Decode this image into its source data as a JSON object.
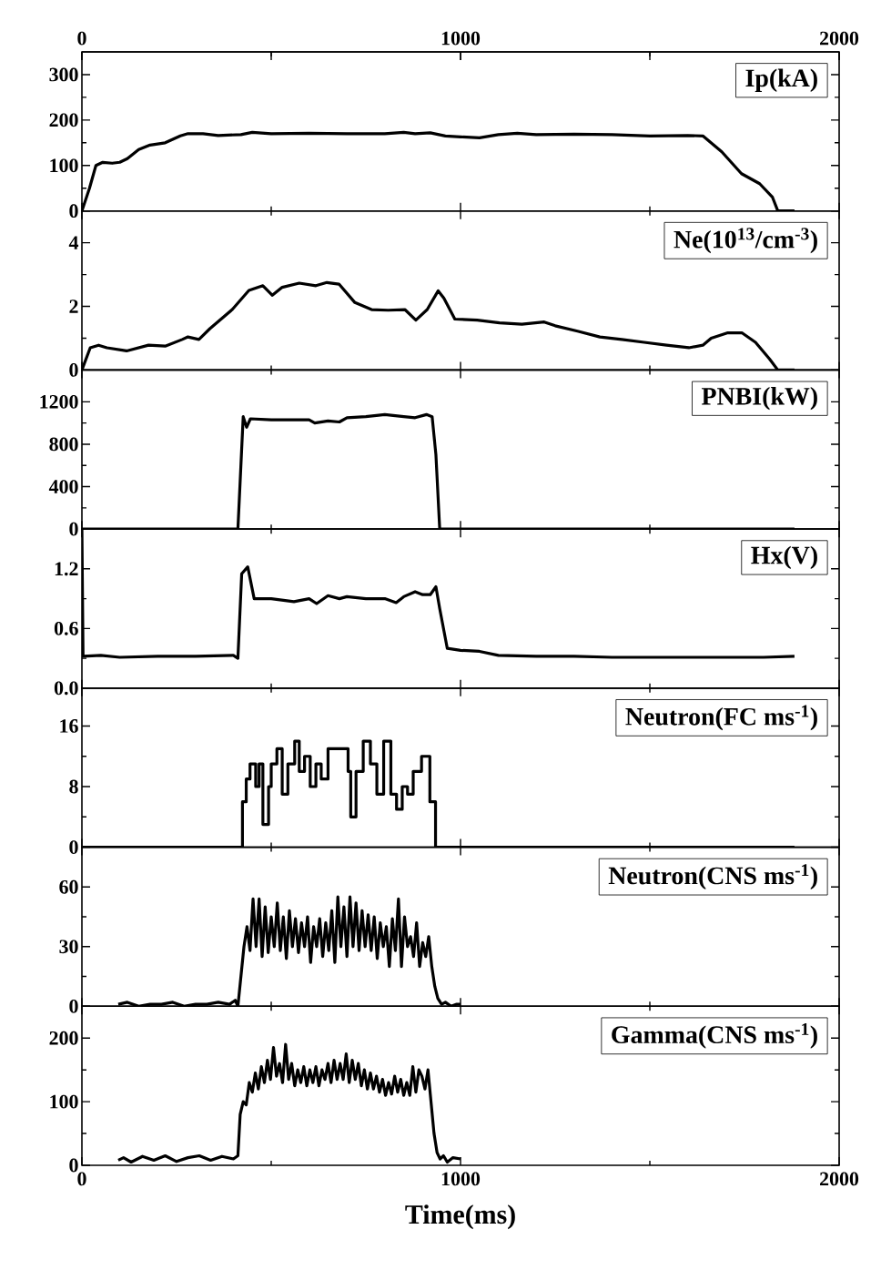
{
  "chart_data": [
    {
      "type": "line",
      "color": "#000000",
      "xlim": [
        0,
        2000
      ],
      "xticks": [
        0,
        1000,
        2000
      ],
      "x2lim": [
        0,
        2000
      ],
      "x2ticks": [
        0,
        1000,
        2000
      ],
      "tick_labels": "y",
      "ylim": [
        0,
        350
      ],
      "yticks": [
        0,
        100,
        200,
        300
      ],
      "annotations": [
        "Ip(kA)"
      ],
      "x": [
        0,
        20,
        37,
        55,
        80,
        100,
        120,
        150,
        180,
        220,
        260,
        280,
        320,
        360,
        420,
        450,
        500,
        600,
        700,
        800,
        850,
        880,
        920,
        960,
        1000,
        1050,
        1100,
        1150,
        1200,
        1300,
        1400,
        1500,
        1600,
        1640,
        1690,
        1742,
        1790,
        1824,
        1838,
        1882
      ],
      "values": [
        0,
        50,
        100,
        107,
        105,
        107,
        115,
        135,
        145,
        150,
        165,
        170,
        170,
        166,
        168,
        173,
        170,
        171,
        170,
        170,
        173,
        170,
        172,
        165,
        163,
        161,
        168,
        171,
        168,
        169,
        168,
        165,
        166,
        165,
        130,
        82,
        60,
        30,
        0,
        0
      ]
    },
    {
      "type": "line",
      "color": "#000000",
      "xlim": [
        0,
        2000
      ],
      "xticks": [
        0,
        1000,
        2000
      ],
      "tick_labels": "y",
      "ylim": [
        0,
        5
      ],
      "yticks": [
        0,
        2,
        4
      ],
      "annotations": [
        "Ne(10$^{13}$/cm$^{-3}$)"
      ],
      "x": [
        0,
        22,
        44,
        66,
        118,
        176,
        220,
        265,
        280,
        309,
        338,
        397,
        441,
        478,
        503,
        529,
        574,
        618,
        647,
        679,
        721,
        765,
        809,
        853,
        882,
        912,
        941,
        956,
        985,
        1044,
        1103,
        1162,
        1221,
        1250,
        1309,
        1368,
        1426,
        1485,
        1544,
        1603,
        1640,
        1662,
        1706,
        1743,
        1779,
        1816,
        1838,
        1882
      ],
      "values": [
        0,
        0.7,
        0.78,
        0.7,
        0.6,
        0.78,
        0.75,
        0.96,
        1.04,
        0.96,
        1.3,
        1.9,
        2.5,
        2.65,
        2.35,
        2.6,
        2.73,
        2.65,
        2.75,
        2.7,
        2.12,
        1.9,
        1.88,
        1.9,
        1.57,
        1.9,
        2.49,
        2.26,
        1.6,
        1.57,
        1.48,
        1.44,
        1.51,
        1.39,
        1.22,
        1.04,
        0.96,
        0.87,
        0.78,
        0.7,
        0.78,
        1.0,
        1.17,
        1.17,
        0.87,
        0.35,
        0,
        0
      ]
    },
    {
      "type": "line",
      "color": "#000000",
      "xlim": [
        0,
        2000
      ],
      "xticks": [
        0,
        1000,
        2000
      ],
      "tick_labels": "y",
      "ylim": [
        0,
        1500
      ],
      "yticks": [
        0,
        400,
        800,
        1200
      ],
      "annotations": [
        "PNBI(kW)"
      ],
      "x": [
        0,
        412,
        426,
        435,
        445,
        500,
        560,
        600,
        615,
        650,
        680,
        700,
        750,
        800,
        850,
        880,
        910,
        925,
        935,
        945,
        1882
      ],
      "values": [
        0,
        0,
        1060,
        960,
        1040,
        1030,
        1030,
        1030,
        1000,
        1020,
        1010,
        1050,
        1060,
        1080,
        1060,
        1050,
        1080,
        1060,
        700,
        0,
        0
      ]
    },
    {
      "type": "line",
      "color": "#000000",
      "xlim": [
        0,
        2000
      ],
      "xticks": [
        0,
        1000,
        2000
      ],
      "tick_labels": "y",
      "ylim": [
        0,
        1.6
      ],
      "yticks": [
        {
          "value": 0,
          "label": "0.0"
        },
        0.6,
        1.2
      ],
      "annotations": [
        "Hx(V)"
      ],
      "x": [
        0,
        3,
        50,
        100,
        200,
        300,
        400,
        412,
        422,
        438,
        455,
        500,
        560,
        600,
        620,
        650,
        680,
        700,
        750,
        800,
        830,
        850,
        880,
        900,
        920,
        935,
        945,
        965,
        1000,
        1050,
        1100,
        1200,
        1300,
        1400,
        1500,
        1600,
        1700,
        1800,
        1882
      ],
      "values": [
        1.6,
        0.32,
        0.33,
        0.31,
        0.32,
        0.32,
        0.33,
        0.3,
        1.15,
        1.22,
        0.9,
        0.9,
        0.87,
        0.9,
        0.85,
        0.93,
        0.9,
        0.92,
        0.9,
        0.9,
        0.86,
        0.92,
        0.97,
        0.94,
        0.94,
        1.02,
        0.8,
        0.4,
        0.38,
        0.37,
        0.33,
        0.32,
        0.32,
        0.31,
        0.31,
        0.31,
        0.31,
        0.31,
        0.32
      ]
    },
    {
      "type": "step",
      "color": "#000000",
      "xlim": [
        0,
        2000
      ],
      "xticks": [
        0,
        1000,
        2000
      ],
      "tick_labels": "y",
      "ylim": [
        0,
        21
      ],
      "yticks": [
        0,
        8,
        16
      ],
      "annotations": [
        "Neutron(FC ms$^{-1}$)"
      ],
      "x": [
        0,
        424,
        434,
        444,
        459,
        468,
        478,
        493,
        500,
        515,
        529,
        544,
        562,
        574,
        588,
        603,
        618,
        632,
        650,
        703,
        710,
        724,
        743,
        762,
        779,
        797,
        816,
        831,
        846,
        860,
        875,
        897,
        919,
        934,
        1882
      ],
      "values": [
        0,
        6,
        9,
        11,
        8,
        11,
        3,
        8,
        11,
        13,
        7,
        11,
        14,
        10,
        12,
        8,
        11,
        9,
        13,
        10,
        4,
        10,
        14,
        11,
        7,
        14,
        7,
        5,
        8,
        7,
        10,
        12,
        6,
        0,
        0
      ]
    },
    {
      "type": "line",
      "color": "#000000",
      "xlim": [
        0,
        2000
      ],
      "xticks": [
        0,
        1000,
        2000
      ],
      "tick_labels": "y",
      "ylim": [
        0,
        80
      ],
      "yticks": [
        0,
        30,
        60
      ],
      "annotations": [
        "Neutron(CNS ms$^{-1}$)"
      ],
      "x": [
        96,
        120,
        150,
        180,
        210,
        240,
        270,
        300,
        330,
        360,
        390,
        405,
        412,
        420,
        428,
        436,
        444,
        452,
        460,
        468,
        476,
        484,
        492,
        500,
        508,
        516,
        524,
        532,
        540,
        548,
        556,
        564,
        572,
        580,
        588,
        596,
        604,
        612,
        620,
        628,
        636,
        644,
        652,
        660,
        668,
        676,
        684,
        692,
        700,
        708,
        716,
        724,
        732,
        740,
        748,
        756,
        764,
        772,
        780,
        788,
        796,
        804,
        812,
        820,
        828,
        836,
        844,
        852,
        860,
        868,
        876,
        884,
        892,
        900,
        908,
        916,
        924,
        932,
        940,
        950,
        960,
        975,
        990,
        1000
      ],
      "values": [
        1,
        2,
        0,
        1,
        1,
        2,
        0,
        1,
        1,
        2,
        1,
        3,
        0,
        15,
        30,
        40,
        28,
        54,
        30,
        54,
        25,
        50,
        27,
        45,
        30,
        52,
        28,
        45,
        24,
        48,
        30,
        44,
        27,
        42,
        30,
        45,
        22,
        40,
        30,
        44,
        25,
        42,
        28,
        48,
        22,
        55,
        30,
        50,
        25,
        55,
        30,
        52,
        28,
        48,
        30,
        46,
        28,
        45,
        24,
        42,
        30,
        40,
        20,
        44,
        28,
        54,
        20,
        45,
        30,
        35,
        25,
        42,
        20,
        32,
        25,
        35,
        20,
        10,
        4,
        1,
        2,
        0,
        1,
        1
      ]
    },
    {
      "type": "line",
      "color": "#000000",
      "xlim": [
        0,
        2000
      ],
      "xticks": [
        0,
        1000,
        2000
      ],
      "ylim": [
        0,
        250
      ],
      "yticks": [
        0,
        100,
        200
      ],
      "xlabel": "Time(ms)",
      "annotations": [
        "Gamma(CNS ms$^{-1}$)"
      ],
      "x": [
        96,
        110,
        130,
        160,
        190,
        220,
        250,
        280,
        310,
        340,
        370,
        400,
        412,
        418,
        426,
        434,
        442,
        450,
        458,
        466,
        474,
        482,
        490,
        498,
        506,
        514,
        522,
        530,
        538,
        546,
        554,
        562,
        570,
        578,
        586,
        594,
        602,
        610,
        618,
        626,
        634,
        642,
        650,
        658,
        666,
        674,
        682,
        690,
        698,
        706,
        714,
        722,
        730,
        738,
        746,
        754,
        762,
        770,
        778,
        786,
        794,
        802,
        810,
        818,
        826,
        834,
        842,
        850,
        858,
        866,
        874,
        882,
        890,
        898,
        906,
        914,
        922,
        930,
        938,
        946,
        955,
        965,
        980,
        1000
      ],
      "values": [
        8,
        12,
        5,
        14,
        8,
        15,
        6,
        12,
        15,
        8,
        14,
        10,
        15,
        80,
        100,
        95,
        130,
        115,
        145,
        120,
        155,
        130,
        165,
        135,
        185,
        140,
        160,
        130,
        190,
        135,
        160,
        125,
        150,
        130,
        155,
        125,
        150,
        130,
        155,
        125,
        150,
        135,
        160,
        130,
        165,
        135,
        160,
        135,
        175,
        130,
        165,
        135,
        160,
        125,
        150,
        120,
        145,
        120,
        140,
        115,
        135,
        110,
        130,
        112,
        140,
        115,
        135,
        110,
        130,
        110,
        155,
        115,
        150,
        140,
        120,
        150,
        100,
        50,
        20,
        10,
        15,
        5,
        12,
        10
      ]
    }
  ]
}
